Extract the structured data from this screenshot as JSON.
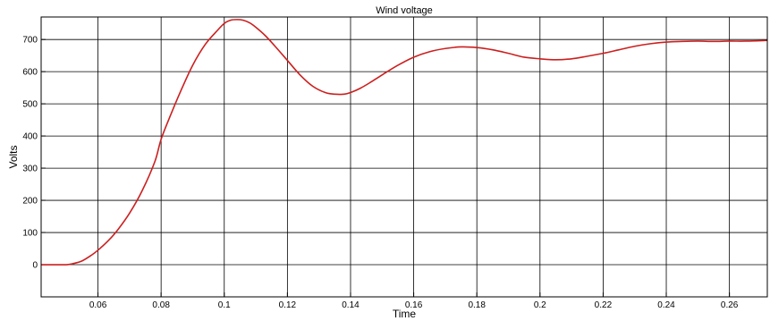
{
  "chart_data": {
    "type": "line",
    "title": "Wind voltage",
    "xlabel": "Time",
    "ylabel": "Volts",
    "xlim": [
      0.042,
      0.272
    ],
    "ylim": [
      -100,
      770
    ],
    "xticks": [
      0.06,
      0.08,
      0.1,
      0.12,
      0.14,
      0.16,
      0.18,
      0.2,
      0.22,
      0.24,
      0.26
    ],
    "xtick_labels": [
      "0.06",
      "0.08",
      "0.1",
      "0.12",
      "0.14",
      "0.16",
      "0.18",
      "0.2",
      "0.22",
      "0.24",
      "0.26"
    ],
    "yticks": [
      0,
      100,
      200,
      300,
      400,
      500,
      600,
      700
    ],
    "ytick_labels": [
      "0",
      "100",
      "200",
      "300",
      "400",
      "500",
      "600",
      "700"
    ],
    "grid": true,
    "series": [
      {
        "color": "#cc1f1f",
        "x": [
          0.042,
          0.046,
          0.05,
          0.052,
          0.055,
          0.058,
          0.06,
          0.063,
          0.066,
          0.07,
          0.074,
          0.078,
          0.08,
          0.083,
          0.086,
          0.09,
          0.094,
          0.098,
          0.1,
          0.102,
          0.104,
          0.106,
          0.108,
          0.11,
          0.113,
          0.116,
          0.12,
          0.124,
          0.128,
          0.132,
          0.135,
          0.138,
          0.14,
          0.143,
          0.146,
          0.15,
          0.155,
          0.16,
          0.165,
          0.17,
          0.175,
          0.18,
          0.185,
          0.19,
          0.195,
          0.2,
          0.205,
          0.21,
          0.215,
          0.22,
          0.225,
          0.23,
          0.235,
          0.24,
          0.245,
          0.25,
          0.255,
          0.26,
          0.265,
          0.272
        ],
        "y": [
          0,
          0,
          0,
          3,
          12,
          30,
          45,
          72,
          105,
          160,
          230,
          320,
          390,
          465,
          535,
          620,
          685,
          730,
          750,
          760,
          762,
          760,
          752,
          738,
          712,
          680,
          635,
          590,
          555,
          535,
          530,
          530,
          535,
          548,
          565,
          590,
          620,
          645,
          662,
          672,
          677,
          675,
          668,
          657,
          645,
          640,
          637,
          640,
          648,
          657,
          668,
          679,
          687,
          692,
          694,
          695,
          694,
          695,
          695,
          697
        ]
      }
    ]
  }
}
